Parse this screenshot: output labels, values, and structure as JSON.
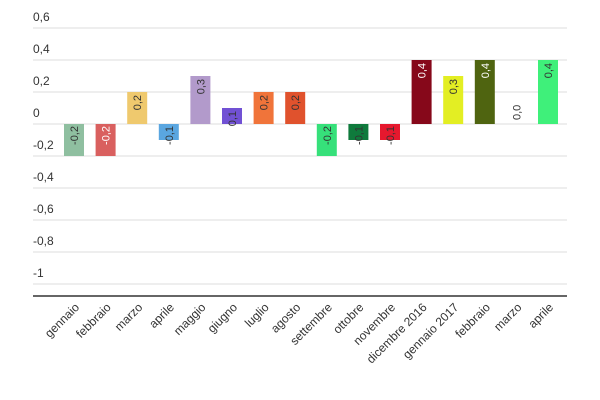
{
  "chart_data": {
    "type": "bar",
    "categories": [
      "gennaio",
      "febbraio",
      "marzo",
      "aprile",
      "maggio",
      "giugno",
      "luglio",
      "agosto",
      "settembre",
      "ottobre",
      "novembre",
      "dicembre 2016",
      "gennaio 2017",
      "febbraio",
      "marzo",
      "aprile"
    ],
    "values": [
      -0.2,
      -0.2,
      0.2,
      -0.1,
      0.3,
      0.1,
      0.2,
      0.2,
      -0.2,
      -0.1,
      -0.1,
      0.4,
      0.3,
      0.4,
      0.0,
      0.4
    ],
    "value_labels": [
      "-0,2",
      "-0,2",
      "0,2",
      "-0,1",
      "0,3",
      "0,1",
      "0,2",
      "0,2",
      "-0,2",
      "-0,1",
      "-0,1",
      "0,4",
      "0,3",
      "0,4",
      "0,0",
      "0,4"
    ],
    "colors": [
      "#8fbfa0",
      "#d9605f",
      "#efc96e",
      "#5aa6e0",
      "#b29acb",
      "#7151d4",
      "#f0743a",
      "#e0522d",
      "#36e07a",
      "#0f7a3c",
      "#e6182e",
      "#86081a",
      "#e3ee23",
      "#4f6410",
      "#cccccc",
      "#3ff07a"
    ],
    "label_colors": [
      "#333333",
      "#ffffff",
      "#333333",
      "#333333",
      "#333333",
      "#333333",
      "#333333",
      "#333333",
      "#333333",
      "#333333",
      "#333333",
      "#ffffff",
      "#333333",
      "#ffffff",
      "#333333",
      "#333333"
    ],
    "y_ticks": [
      0.6,
      0.4,
      0.2,
      0,
      -0.2,
      -0.4,
      -0.6,
      -0.8,
      -1
    ],
    "y_tick_labels": [
      "0,6",
      "0,4",
      "0,2",
      "0",
      "-0,2",
      "-0,4",
      "-0,6",
      "-0,8",
      "-1"
    ],
    "ylim": [
      -1.1,
      0.6
    ],
    "title": "",
    "xlabel": "",
    "ylabel": "",
    "grid": true,
    "legend": "none"
  }
}
